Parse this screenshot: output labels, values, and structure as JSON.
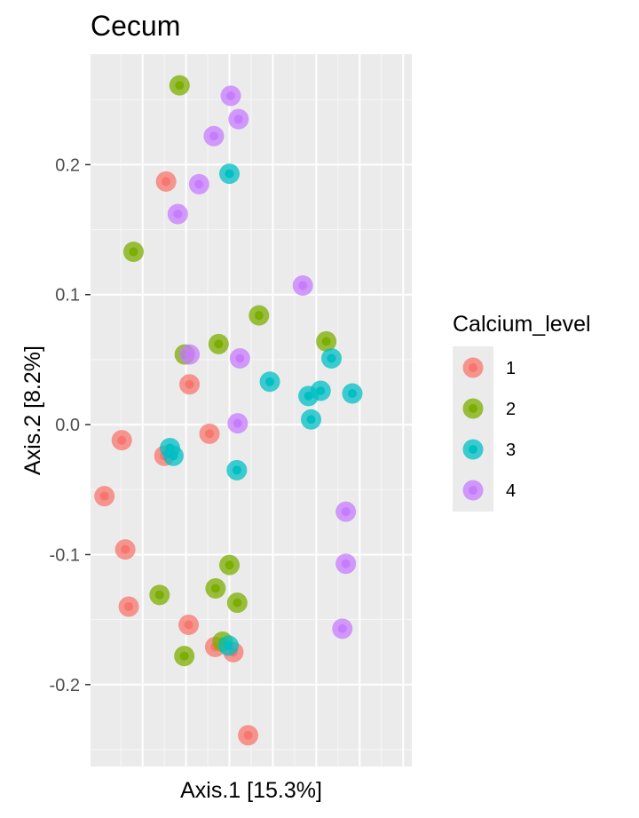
{
  "chart_data": {
    "type": "scatter",
    "title": "Cecum",
    "xlabel": "Axis.1   [15.3%]",
    "ylabel": "Axis.2   [8.2%]",
    "xlim": [
      -0.32,
      0.42
    ],
    "ylim": [
      -0.263,
      0.285
    ],
    "x_ticks": [],
    "y_ticks": [
      {
        "value": -0.2,
        "label": "-0.2"
      },
      {
        "value": -0.1,
        "label": "-0.1"
      },
      {
        "value": 0.0,
        "label": "0.0"
      },
      {
        "value": 0.1,
        "label": "0.1"
      },
      {
        "value": 0.2,
        "label": "0.2"
      }
    ],
    "grid": true,
    "legend": {
      "title": "Calcium_level",
      "position": "right"
    },
    "series": [
      {
        "name": "1",
        "color": "#F8766D",
        "points": [
          [
            -0.146,
            0.187
          ],
          [
            -0.092,
            0.031
          ],
          [
            -0.046,
            -0.007
          ],
          [
            -0.248,
            -0.012
          ],
          [
            -0.15,
            -0.024
          ],
          [
            -0.288,
            -0.055
          ],
          [
            -0.24,
            -0.096
          ],
          [
            -0.232,
            -0.14
          ],
          [
            -0.094,
            -0.154
          ],
          [
            -0.033,
            -0.171
          ],
          [
            0.009,
            -0.175
          ],
          [
            0.043,
            -0.239
          ]
        ]
      },
      {
        "name": "2",
        "color": "#7CAE00",
        "points": [
          [
            -0.115,
            0.261
          ],
          [
            -0.221,
            0.133
          ],
          [
            0.068,
            0.084
          ],
          [
            -0.025,
            0.062
          ],
          [
            -0.103,
            0.054
          ],
          [
            0.223,
            0.064
          ],
          [
            0.0,
            -0.108
          ],
          [
            -0.032,
            -0.126
          ],
          [
            0.018,
            -0.137
          ],
          [
            -0.161,
            -0.131
          ],
          [
            -0.104,
            -0.178
          ],
          [
            -0.016,
            -0.167
          ]
        ]
      },
      {
        "name": "3",
        "color": "#00BFC4",
        "points": [
          [
            0.0,
            0.193
          ],
          [
            0.093,
            0.033
          ],
          [
            0.182,
            0.022
          ],
          [
            0.235,
            0.051
          ],
          [
            0.21,
            0.026
          ],
          [
            0.283,
            0.024
          ],
          [
            0.188,
            0.004
          ],
          [
            -0.137,
            -0.018
          ],
          [
            -0.129,
            -0.024
          ],
          [
            0.017,
            -0.035
          ],
          [
            -0.002,
            -0.17
          ]
        ]
      },
      {
        "name": "4",
        "color": "#C77CFF",
        "points": [
          [
            0.003,
            0.253
          ],
          [
            0.021,
            0.235
          ],
          [
            -0.036,
            0.222
          ],
          [
            -0.07,
            0.185
          ],
          [
            -0.119,
            0.162
          ],
          [
            0.169,
            0.107
          ],
          [
            -0.092,
            0.054
          ],
          [
            0.024,
            0.051
          ],
          [
            0.019,
            0.001
          ],
          [
            0.268,
            -0.067
          ],
          [
            0.268,
            -0.107
          ],
          [
            0.26,
            -0.157
          ]
        ]
      }
    ]
  }
}
